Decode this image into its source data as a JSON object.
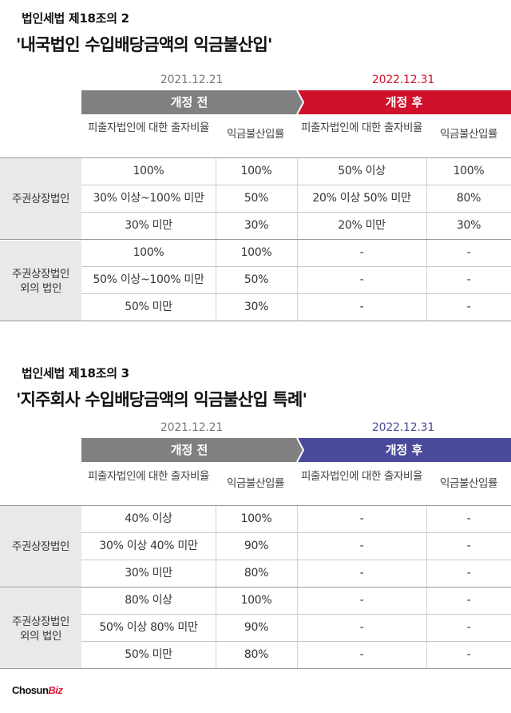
{
  "sections": [
    {
      "law": "법인세법 제18조의 2",
      "title": "'내국법인 수입배당금액의 익금불산입'",
      "before": {
        "date": "2021.12.21",
        "label": "개정 전"
      },
      "after": {
        "date": "2022.12.31",
        "label": "개정 후"
      },
      "columns": [
        "피출자법인에 대한 출자비율",
        "익금불산입률",
        "피출자법인에 대한 출자비율",
        "익금불산입률"
      ],
      "groups": [
        {
          "label": "주권상장법인",
          "rows": [
            [
              "100%",
              "100%",
              "50% 이상",
              "100%"
            ],
            [
              "30% 이상~100% 미만",
              "50%",
              "20% 이상 50% 미만",
              "80%"
            ],
            [
              "30% 미만",
              "30%",
              "20% 미만",
              "30%"
            ]
          ]
        },
        {
          "label": "주권상장법인 외의 법인",
          "rows": [
            [
              "100%",
              "100%",
              "-",
              "-"
            ],
            [
              "50% 이상~100% 미만",
              "50%",
              "-",
              "-"
            ],
            [
              "50% 미만",
              "30%",
              "-",
              "-"
            ]
          ]
        }
      ],
      "colors": {
        "before": "#808080",
        "after": "#d0112b",
        "after_date": "#d0112b"
      }
    },
    {
      "law": "법인세법 제18조의 3",
      "title": "'지주회사 수입배당금액의 익금불산입 특례'",
      "before": {
        "date": "2021.12.21",
        "label": "개정 전"
      },
      "after": {
        "date": "2022.12.31",
        "label": "개정 후"
      },
      "columns": [
        "피출자법인에 대한 출자비율",
        "익금불산입률",
        "피출자법인에 대한 출자비율",
        "익금불산입률"
      ],
      "groups": [
        {
          "label": "주권상장법인",
          "rows": [
            [
              "40% 이상",
              "100%",
              "-",
              "-"
            ],
            [
              "30% 이상 40% 미만",
              "90%",
              "-",
              "-"
            ],
            [
              "30% 미만",
              "80%",
              "-",
              "-"
            ]
          ]
        },
        {
          "label": "주권상장법인 외의 법인",
          "rows": [
            [
              "80% 이상",
              "100%",
              "-",
              "-"
            ],
            [
              "50% 이상 80% 미만",
              "90%",
              "-",
              "-"
            ],
            [
              "50% 미만",
              "80%",
              "-",
              "-"
            ]
          ]
        }
      ],
      "colors": {
        "before": "#808080",
        "after": "#4a4a9c",
        "after_date": "#4a4a9c"
      }
    }
  ],
  "logo": {
    "main": "Chosun",
    "accent": "Biz"
  }
}
